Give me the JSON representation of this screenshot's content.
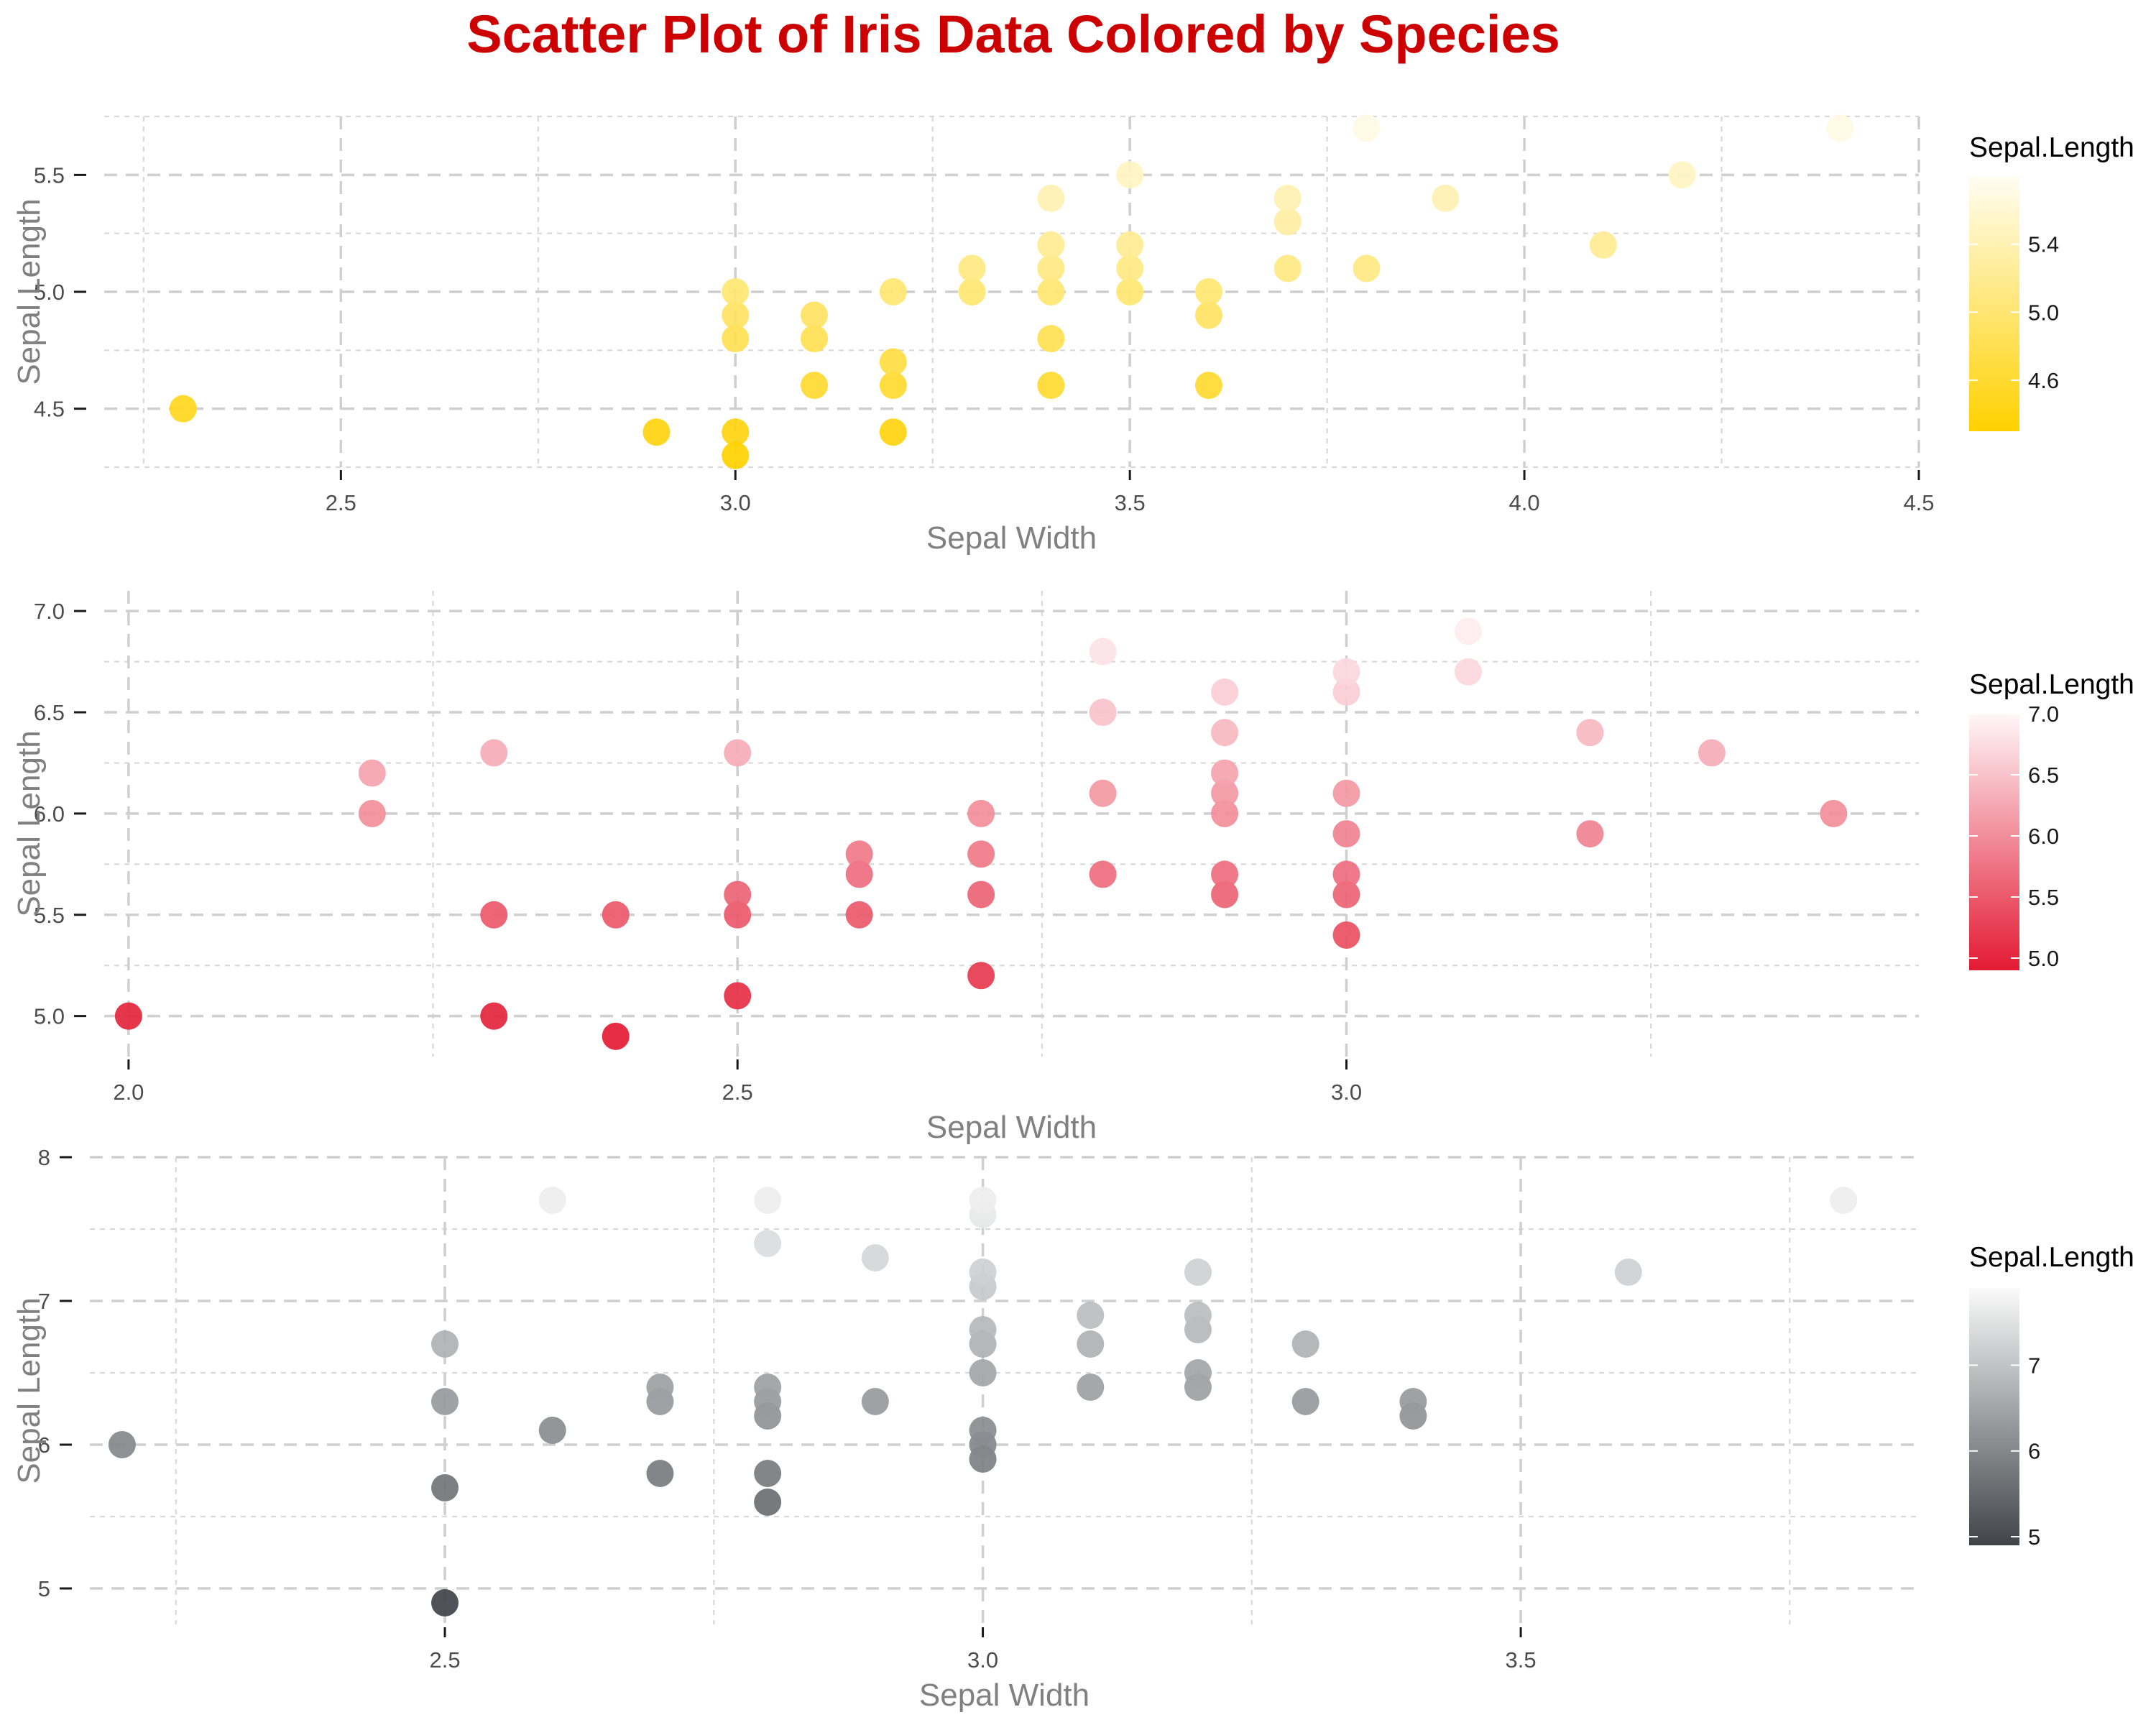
{
  "title": "Scatter Plot of Iris Data Colored by Species",
  "chart_data": [
    {
      "type": "scatter",
      "xlabel": "Sepal Width",
      "ylabel": "Sepal Length",
      "xlim": [
        2.2,
        4.5
      ],
      "ylim": [
        4.25,
        5.75
      ],
      "xticks": [
        "2.5",
        "3.0",
        "3.5",
        "4.0",
        "4.5"
      ],
      "yticks": [
        "4.5",
        "5.0",
        "5.5"
      ],
      "grid": true,
      "legend": {
        "title": "Sepal.Length",
        "position": "right",
        "color_low": "#FFD100",
        "color_high": "#FFFDF3",
        "range": [
          4.3,
          5.8
        ],
        "labels": [
          "4.6",
          "5.0",
          "5.4"
        ]
      },
      "points": [
        [
          2.3,
          4.5
        ],
        [
          2.9,
          4.4
        ],
        [
          3.0,
          4.4
        ],
        [
          3.0,
          4.3
        ],
        [
          3.0,
          4.8
        ],
        [
          3.0,
          4.9
        ],
        [
          3.0,
          5.0
        ],
        [
          3.1,
          4.6
        ],
        [
          3.1,
          4.8
        ],
        [
          3.1,
          4.9
        ],
        [
          3.2,
          4.4
        ],
        [
          3.2,
          4.6
        ],
        [
          3.2,
          4.7
        ],
        [
          3.2,
          5.0
        ],
        [
          3.3,
          5.0
        ],
        [
          3.3,
          5.1
        ],
        [
          3.4,
          4.6
        ],
        [
          3.4,
          4.8
        ],
        [
          3.4,
          5.0
        ],
        [
          3.4,
          5.1
        ],
        [
          3.4,
          5.2
        ],
        [
          3.4,
          5.4
        ],
        [
          3.5,
          5.0
        ],
        [
          3.5,
          5.1
        ],
        [
          3.5,
          5.2
        ],
        [
          3.5,
          5.5
        ],
        [
          3.6,
          4.6
        ],
        [
          3.6,
          4.9
        ],
        [
          3.6,
          5.0
        ],
        [
          3.7,
          5.1
        ],
        [
          3.7,
          5.3
        ],
        [
          3.7,
          5.4
        ],
        [
          3.8,
          5.1
        ],
        [
          3.8,
          5.7
        ],
        [
          3.9,
          5.4
        ],
        [
          4.1,
          5.2
        ],
        [
          4.2,
          5.5
        ],
        [
          4.4,
          5.7
        ]
      ]
    },
    {
      "type": "scatter",
      "xlabel": "Sepal Width",
      "ylabel": "Sepal Length",
      "xlim": [
        1.98,
        3.47
      ],
      "ylim": [
        4.8,
        7.1
      ],
      "xticks": [
        "2.0",
        "2.5",
        "3.0"
      ],
      "yticks": [
        "5.0",
        "5.5",
        "6.0",
        "6.5",
        "7.0"
      ],
      "grid": true,
      "legend": {
        "title": "Sepal.Length",
        "position": "right",
        "color_low": "#E31A33",
        "color_high": "#FFF7F9",
        "range": [
          4.9,
          7.0
        ],
        "labels": [
          "5.0",
          "5.5",
          "6.0",
          "6.5",
          "7.0"
        ]
      },
      "points": [
        [
          2.0,
          5.0
        ],
        [
          2.2,
          6.0
        ],
        [
          2.2,
          6.2
        ],
        [
          2.3,
          5.0
        ],
        [
          2.3,
          5.5
        ],
        [
          2.3,
          6.3
        ],
        [
          2.4,
          4.9
        ],
        [
          2.4,
          5.5
        ],
        [
          2.5,
          5.1
        ],
        [
          2.5,
          5.5
        ],
        [
          2.5,
          5.6
        ],
        [
          2.5,
          6.3
        ],
        [
          2.6,
          5.5
        ],
        [
          2.6,
          5.7
        ],
        [
          2.6,
          5.8
        ],
        [
          2.7,
          5.2
        ],
        [
          2.7,
          5.6
        ],
        [
          2.7,
          5.8
        ],
        [
          2.7,
          6.0
        ],
        [
          2.8,
          5.7
        ],
        [
          2.8,
          6.1
        ],
        [
          2.8,
          6.5
        ],
        [
          2.8,
          6.8
        ],
        [
          2.9,
          5.6
        ],
        [
          2.9,
          5.7
        ],
        [
          2.9,
          6.0
        ],
        [
          2.9,
          6.1
        ],
        [
          2.9,
          6.2
        ],
        [
          2.9,
          6.4
        ],
        [
          2.9,
          6.6
        ],
        [
          3.0,
          5.4
        ],
        [
          3.0,
          5.6
        ],
        [
          3.0,
          5.7
        ],
        [
          3.0,
          5.9
        ],
        [
          3.0,
          6.1
        ],
        [
          3.0,
          6.6
        ],
        [
          3.0,
          6.7
        ],
        [
          3.1,
          6.7
        ],
        [
          3.1,
          6.9
        ],
        [
          3.2,
          5.9
        ],
        [
          3.2,
          6.4
        ],
        [
          3.3,
          6.3
        ],
        [
          3.4,
          6.0
        ]
      ]
    },
    {
      "type": "scatter",
      "xlabel": "Sepal Width",
      "ylabel": "Sepal Length",
      "xlim": [
        2.17,
        3.87
      ],
      "ylim": [
        4.75,
        8.0
      ],
      "xticks": [
        "2.5",
        "3.0",
        "3.5"
      ],
      "yticks": [
        "5",
        "6",
        "7",
        "8"
      ],
      "grid": true,
      "legend": {
        "title": "Sepal.Length",
        "position": "right",
        "color_low": "#404449",
        "color_high": "#FAFAFA",
        "range": [
          4.9,
          7.9
        ],
        "labels": [
          "5",
          "6",
          "7"
        ]
      },
      "points": [
        [
          2.2,
          6.0
        ],
        [
          2.5,
          4.9
        ],
        [
          2.5,
          5.7
        ],
        [
          2.5,
          6.3
        ],
        [
          2.5,
          6.7
        ],
        [
          2.6,
          6.1
        ],
        [
          2.6,
          7.7
        ],
        [
          2.7,
          5.8
        ],
        [
          2.7,
          6.3
        ],
        [
          2.7,
          6.4
        ],
        [
          2.8,
          5.6
        ],
        [
          2.8,
          5.8
        ],
        [
          2.8,
          6.2
        ],
        [
          2.8,
          6.3
        ],
        [
          2.8,
          6.4
        ],
        [
          2.8,
          7.4
        ],
        [
          2.8,
          7.7
        ],
        [
          2.9,
          6.3
        ],
        [
          2.9,
          7.3
        ],
        [
          3.0,
          5.9
        ],
        [
          3.0,
          6.0
        ],
        [
          3.0,
          6.1
        ],
        [
          3.0,
          6.5
        ],
        [
          3.0,
          6.7
        ],
        [
          3.0,
          6.8
        ],
        [
          3.0,
          7.1
        ],
        [
          3.0,
          7.2
        ],
        [
          3.0,
          7.6
        ],
        [
          3.0,
          7.7
        ],
        [
          3.1,
          6.4
        ],
        [
          3.1,
          6.7
        ],
        [
          3.1,
          6.9
        ],
        [
          3.2,
          6.4
        ],
        [
          3.2,
          6.5
        ],
        [
          3.2,
          6.8
        ],
        [
          3.2,
          6.9
        ],
        [
          3.2,
          7.2
        ],
        [
          3.3,
          6.3
        ],
        [
          3.3,
          6.7
        ],
        [
          3.4,
          6.2
        ],
        [
          3.4,
          6.3
        ],
        [
          3.6,
          7.2
        ],
        [
          3.8,
          7.7
        ]
      ]
    }
  ]
}
